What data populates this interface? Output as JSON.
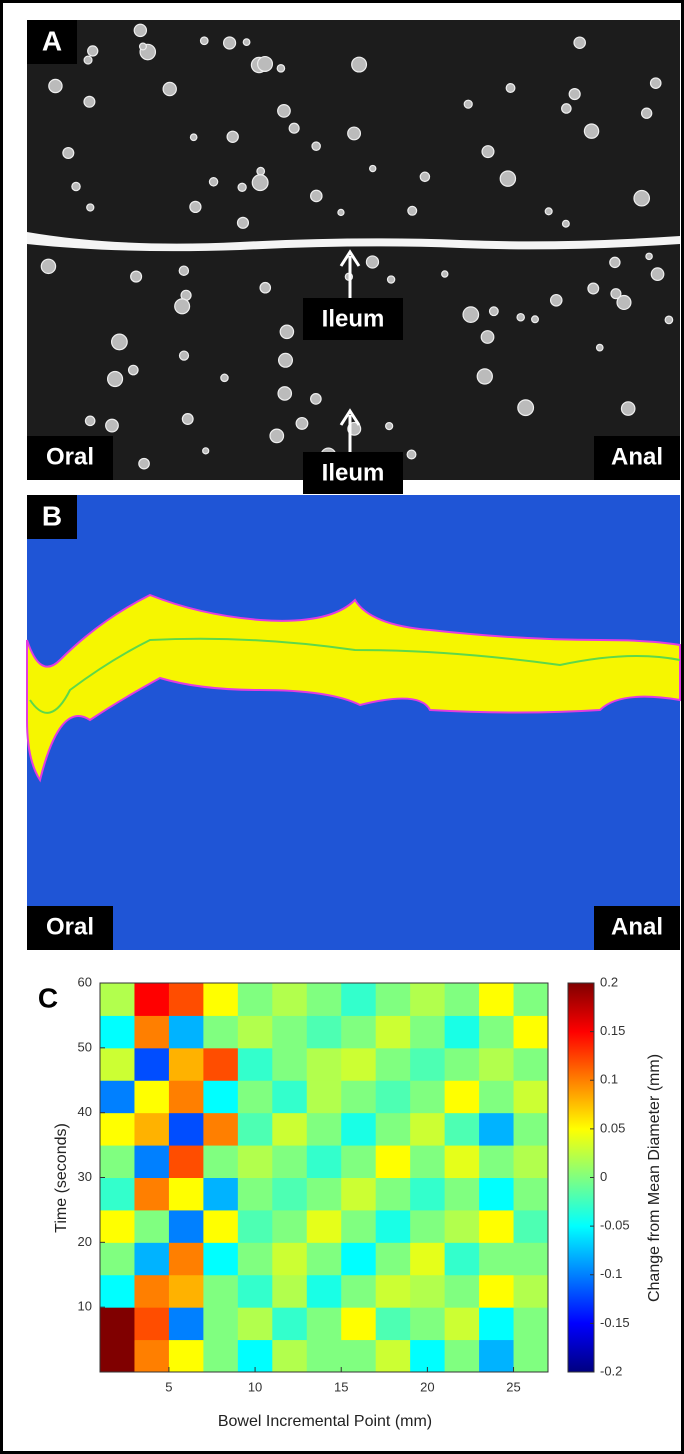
{
  "panels": [
    {
      "letter": "A",
      "pointer": "Ileum",
      "left": "Oral",
      "right": "Anal"
    },
    {
      "letter": "B",
      "pointer": "Ileum",
      "left": "Oral",
      "right": "Anal"
    },
    {
      "letter": "C"
    }
  ],
  "chart_data": {
    "type": "heatmap",
    "x_label": "Bowel Incremental Point (mm)",
    "y_label": "Time (seconds)",
    "x": [
      2,
      4,
      6,
      8,
      10,
      12,
      14,
      16,
      18,
      20,
      22,
      24,
      26
    ],
    "y": [
      2.5,
      7.5,
      12.5,
      17.5,
      22.5,
      27.5,
      32.5,
      37.5,
      42.5,
      47.5,
      52.5,
      57.5
    ],
    "values": [
      [
        0.2,
        0.1,
        0.05,
        0,
        -0.05,
        0.02,
        0,
        0,
        0.03,
        -0.05,
        0,
        -0.08,
        0
      ],
      [
        0.2,
        0.12,
        -0.1,
        0,
        0.02,
        -0.03,
        0,
        0.05,
        -0.02,
        0,
        0.03,
        -0.05,
        0
      ],
      [
        -0.05,
        0.1,
        0.08,
        0,
        -0.03,
        0.02,
        -0.04,
        0,
        0.03,
        0.02,
        0,
        0.05,
        0.02
      ],
      [
        0,
        -0.08,
        0.1,
        -0.05,
        0,
        0.03,
        0,
        -0.05,
        0,
        0.04,
        -0.03,
        0,
        0
      ],
      [
        0.05,
        0,
        -0.1,
        0.05,
        -0.02,
        0,
        0.04,
        0,
        -0.04,
        0,
        0.02,
        0.05,
        -0.02
      ],
      [
        -0.03,
        0.1,
        0.05,
        -0.08,
        0,
        -0.02,
        0,
        0.03,
        0,
        -0.03,
        0,
        -0.05,
        0
      ],
      [
        0,
        -0.1,
        0.12,
        0,
        0.02,
        0,
        -0.03,
        0,
        0.05,
        0,
        0.04,
        0,
        0.02
      ],
      [
        0.05,
        0.08,
        -0.12,
        0.1,
        -0.02,
        0.03,
        0,
        -0.04,
        0,
        0.03,
        -0.02,
        -0.08,
        0
      ],
      [
        -0.1,
        0.05,
        0.1,
        -0.05,
        0,
        -0.03,
        0.02,
        0,
        -0.02,
        0,
        0.05,
        0,
        0.03
      ],
      [
        0.03,
        -0.12,
        0.08,
        0.12,
        -0.03,
        0,
        0.02,
        0.03,
        0,
        -0.02,
        0,
        0.02,
        0
      ],
      [
        -0.05,
        0.1,
        -0.08,
        0,
        0.02,
        0,
        -0.02,
        0,
        0.03,
        0,
        -0.04,
        0,
        0.05
      ],
      [
        0.02,
        0.15,
        0.12,
        0.05,
        0,
        0.02,
        0,
        -0.03,
        0,
        0.02,
        0,
        0.05,
        0
      ]
    ],
    "xlim": [
      1,
      27
    ],
    "xticks": [
      5,
      10,
      15,
      20,
      25
    ],
    "ylim": [
      0,
      60
    ],
    "yticks": [
      10,
      20,
      30,
      40,
      50,
      60
    ],
    "colormap": "jet",
    "colorbar": {
      "label": "Change from Mean Diameter (mm)",
      "ylim": [
        -0.2,
        0.2
      ],
      "yticks": [
        -0.2,
        -0.15,
        -0.1,
        -0.05,
        0,
        0.05,
        0.1,
        0.15,
        0.2
      ]
    }
  }
}
